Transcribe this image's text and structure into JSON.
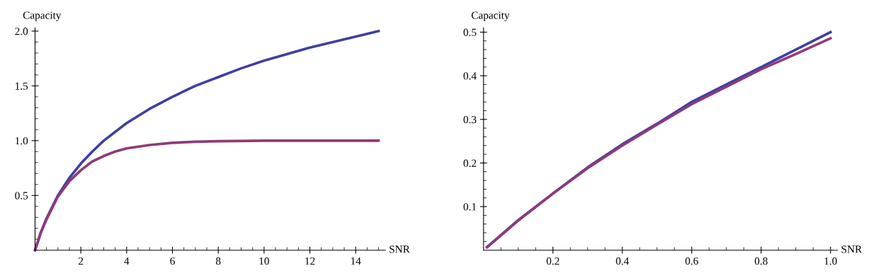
{
  "chart_data": [
    {
      "type": "line",
      "xlabel": "SNR",
      "ylabel": "Capacity",
      "xlim": [
        0,
        15.3
      ],
      "ylim": [
        0,
        2.03
      ],
      "grid": false,
      "legend": false,
      "marker": "none",
      "line_style": "solid",
      "xticks": [
        2,
        4,
        6,
        8,
        10,
        12,
        14,
        {
          "value": 0.5,
          "label": null
        },
        {
          "value": 1,
          "label": null
        },
        {
          "value": 1.5,
          "label": null
        },
        {
          "value": 2.5,
          "label": null
        },
        {
          "value": 3,
          "label": null
        },
        {
          "value": 3.5,
          "label": null
        },
        {
          "value": 4.5,
          "label": null
        },
        {
          "value": 5,
          "label": null
        },
        {
          "value": 5.5,
          "label": null
        },
        {
          "value": 6.5,
          "label": null
        },
        {
          "value": 7,
          "label": null
        },
        {
          "value": 7.5,
          "label": null
        },
        {
          "value": 8.5,
          "label": null
        },
        {
          "value": 9,
          "label": null
        },
        {
          "value": 9.5,
          "label": null
        },
        {
          "value": 10.5,
          "label": null
        },
        {
          "value": 11,
          "label": null
        },
        {
          "value": 11.5,
          "label": null
        },
        {
          "value": 12.5,
          "label": null
        },
        {
          "value": 13,
          "label": null
        },
        {
          "value": 13.5,
          "label": null
        },
        {
          "value": 14.5,
          "label": null
        },
        {
          "value": 15,
          "label": null
        }
      ],
      "yticks": [
        {
          "value": 0.5,
          "label": "0.5"
        },
        {
          "value": 1.0,
          "label": "1.0"
        },
        {
          "value": 1.5,
          "label": "1.5"
        },
        {
          "value": 2.0,
          "label": "2.0"
        },
        {
          "value": 0.1,
          "label": null
        },
        {
          "value": 0.2,
          "label": null
        },
        {
          "value": 0.3,
          "label": null
        },
        {
          "value": 0.4,
          "label": null
        },
        {
          "value": 0.6,
          "label": null
        },
        {
          "value": 0.7,
          "label": null
        },
        {
          "value": 0.8,
          "label": null
        },
        {
          "value": 0.9,
          "label": null
        },
        {
          "value": 1.1,
          "label": null
        },
        {
          "value": 1.2,
          "label": null
        },
        {
          "value": 1.3,
          "label": null
        },
        {
          "value": 1.4,
          "label": null
        },
        {
          "value": 1.6,
          "label": null
        },
        {
          "value": 1.7,
          "label": null
        },
        {
          "value": 1.8,
          "label": null
        },
        {
          "value": 1.9,
          "label": null
        }
      ],
      "series": [
        {
          "color": "#3f3fa0",
          "x": [
            0,
            0.25,
            0.5,
            1,
            1.5,
            2,
            2.5,
            3,
            4,
            5,
            6,
            7,
            8,
            9,
            10,
            11,
            12,
            13,
            14,
            15
          ],
          "values": [
            0,
            0.16,
            0.29,
            0.5,
            0.66,
            0.79,
            0.9,
            1.0,
            1.16,
            1.29,
            1.4,
            1.5,
            1.58,
            1.66,
            1.73,
            1.79,
            1.85,
            1.9,
            1.95,
            2.0
          ]
        },
        {
          "color": "#8f3a7a",
          "x": [
            0,
            0.25,
            0.5,
            1,
            1.5,
            2,
            2.5,
            3,
            3.5,
            4,
            5,
            6,
            7,
            8,
            10,
            12,
            15
          ],
          "values": [
            0,
            0.16,
            0.28,
            0.49,
            0.63,
            0.73,
            0.81,
            0.86,
            0.9,
            0.93,
            0.96,
            0.98,
            0.99,
            0.995,
            1.0,
            1.0,
            1.0
          ]
        }
      ]
    },
    {
      "type": "line",
      "xlabel": "SNR",
      "ylabel": "Capacity",
      "xlim": [
        0,
        1.02
      ],
      "ylim": [
        0,
        0.51
      ],
      "grid": false,
      "legend": false,
      "marker": "none",
      "line_style": "solid",
      "xticks": [
        0.2,
        0.4,
        0.6,
        {
          "value": 0.8,
          "label": "0.8"
        },
        {
          "value": 1.0,
          "label": "1.0"
        },
        {
          "value": 0.05,
          "label": null
        },
        {
          "value": 0.1,
          "label": null
        },
        {
          "value": 0.15,
          "label": null
        },
        {
          "value": 0.25,
          "label": null
        },
        {
          "value": 0.3,
          "label": null
        },
        {
          "value": 0.35,
          "label": null
        },
        {
          "value": 0.45,
          "label": null
        },
        {
          "value": 0.5,
          "label": null
        },
        {
          "value": 0.55,
          "label": null
        },
        {
          "value": 0.65,
          "label": null
        },
        {
          "value": 0.7,
          "label": null
        },
        {
          "value": 0.75,
          "label": null
        },
        {
          "value": 0.85,
          "label": null
        },
        {
          "value": 0.9,
          "label": null
        },
        {
          "value": 0.95,
          "label": null
        }
      ],
      "yticks": [
        0.1,
        0.2,
        0.3,
        0.4,
        0.5,
        {
          "value": 0.02,
          "label": null
        },
        {
          "value": 0.04,
          "label": null
        },
        {
          "value": 0.06,
          "label": null
        },
        {
          "value": 0.08,
          "label": null
        },
        {
          "value": 0.12,
          "label": null
        },
        {
          "value": 0.14,
          "label": null
        },
        {
          "value": 0.16,
          "label": null
        },
        {
          "value": 0.18,
          "label": null
        },
        {
          "value": 0.22,
          "label": null
        },
        {
          "value": 0.24,
          "label": null
        },
        {
          "value": 0.26,
          "label": null
        },
        {
          "value": 0.28,
          "label": null
        },
        {
          "value": 0.32,
          "label": null
        },
        {
          "value": 0.34,
          "label": null
        },
        {
          "value": 0.36,
          "label": null
        },
        {
          "value": 0.38,
          "label": null
        },
        {
          "value": 0.42,
          "label": null
        },
        {
          "value": 0.44,
          "label": null
        },
        {
          "value": 0.46,
          "label": null
        },
        {
          "value": 0.48,
          "label": null
        }
      ],
      "series": [
        {
          "color": "#3f3fa0",
          "x": [
            0.01,
            0.1,
            0.2,
            0.3,
            0.4,
            0.5,
            0.6,
            0.7,
            0.8,
            0.9,
            1.0
          ],
          "values": [
            0.007,
            0.069,
            0.13,
            0.19,
            0.243,
            0.29,
            0.34,
            0.38,
            0.42,
            0.46,
            0.5
          ]
        },
        {
          "color": "#8f3a7a",
          "x": [
            0.01,
            0.1,
            0.2,
            0.3,
            0.4,
            0.5,
            0.6,
            0.7,
            0.8,
            0.9,
            1.0
          ],
          "values": [
            0.007,
            0.068,
            0.13,
            0.188,
            0.24,
            0.288,
            0.335,
            0.375,
            0.415,
            0.45,
            0.486
          ]
        }
      ]
    }
  ]
}
